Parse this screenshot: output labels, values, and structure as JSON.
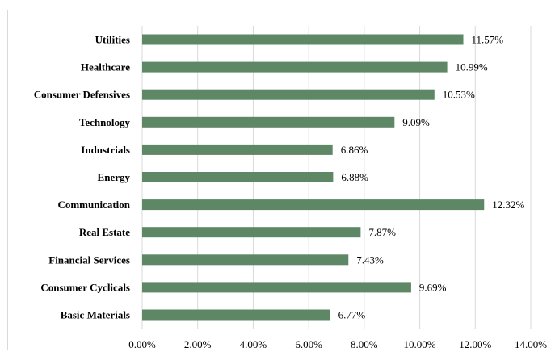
{
  "chart_data": {
    "type": "bar",
    "orientation": "horizontal",
    "title": "",
    "xlabel": "",
    "ylabel": "",
    "categories": [
      "Utilities",
      "Healthcare",
      "Consumer Defensives",
      "Technology",
      "Industrials",
      "Energy",
      "Communication",
      "Real Estate",
      "Financial Services",
      "Consumer Cyclicals",
      "Basic Materials"
    ],
    "values": [
      11.57,
      10.99,
      10.53,
      9.09,
      6.86,
      6.88,
      12.32,
      7.87,
      7.43,
      9.69,
      6.77
    ],
    "value_labels": [
      "11.57%",
      "10.99%",
      "10.53%",
      "9.09%",
      "6.86%",
      "6.88%",
      "12.32%",
      "7.87%",
      "7.43%",
      "9.69%",
      "6.77%"
    ],
    "xlim": [
      0,
      14
    ],
    "x_ticks": [
      0,
      2,
      4,
      6,
      8,
      10,
      12,
      14
    ],
    "x_tick_labels": [
      "0.00%",
      "2.00%",
      "4.00%",
      "6.00%",
      "8.00%",
      "10.00%",
      "12.00%",
      "14.00%"
    ],
    "grid": true,
    "legend": "none",
    "bar_color": "#5e8766"
  }
}
